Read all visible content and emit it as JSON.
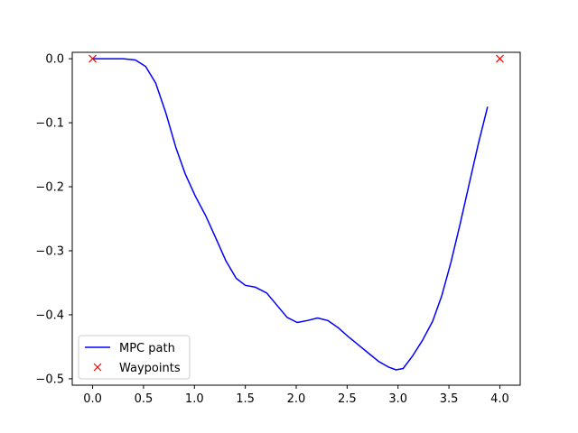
{
  "chart_data": {
    "type": "line",
    "title": "",
    "xlabel": "",
    "ylabel": "",
    "xlim": [
      -0.2,
      4.2
    ],
    "ylim": [
      -0.51,
      0.01
    ],
    "grid": false,
    "legend_position": "lower-left",
    "x_ticks": [
      0.0,
      0.5,
      1.0,
      1.5,
      2.0,
      2.5,
      3.0,
      3.5,
      4.0
    ],
    "x_tick_labels": [
      "0.0",
      "0.5",
      "1.0",
      "1.5",
      "2.0",
      "2.5",
      "3.0",
      "3.5",
      "4.0"
    ],
    "y_ticks": [
      0.0,
      -0.1,
      -0.2,
      -0.3,
      -0.4,
      -0.5
    ],
    "y_tick_labels": [
      "0.0",
      "−0.1",
      "−0.2",
      "−0.3",
      "−0.4",
      "−0.5"
    ],
    "series": [
      {
        "name": "MPC path",
        "type": "line",
        "color": "#0000ff",
        "x": [
          0.0,
          0.1,
          0.2,
          0.3,
          0.42,
          0.52,
          0.62,
          0.72,
          0.82,
          0.91,
          1.01,
          1.11,
          1.21,
          1.31,
          1.41,
          1.5,
          1.6,
          1.71,
          1.81,
          1.91,
          2.01,
          2.11,
          2.21,
          2.31,
          2.41,
          2.51,
          2.61,
          2.71,
          2.81,
          2.91,
          2.98,
          3.05,
          3.14,
          3.24,
          3.34,
          3.43,
          3.52,
          3.61,
          3.7,
          3.79,
          3.88
        ],
        "y": [
          0.0,
          0.0,
          0.0,
          0.0,
          -0.002,
          -0.012,
          -0.038,
          -0.085,
          -0.14,
          -0.18,
          -0.215,
          -0.245,
          -0.28,
          -0.316,
          -0.343,
          -0.354,
          -0.357,
          -0.366,
          -0.385,
          -0.404,
          -0.412,
          -0.409,
          -0.405,
          -0.409,
          -0.42,
          -0.434,
          -0.447,
          -0.46,
          -0.473,
          -0.482,
          -0.486,
          -0.484,
          -0.465,
          -0.44,
          -0.41,
          -0.37,
          -0.318,
          -0.258,
          -0.195,
          -0.132,
          -0.075
        ]
      },
      {
        "name": "Waypoints",
        "type": "marker",
        "marker": "x",
        "color": "#ff0000",
        "x": [
          0.0,
          4.0
        ],
        "y": [
          0.0,
          0.0
        ]
      }
    ]
  }
}
